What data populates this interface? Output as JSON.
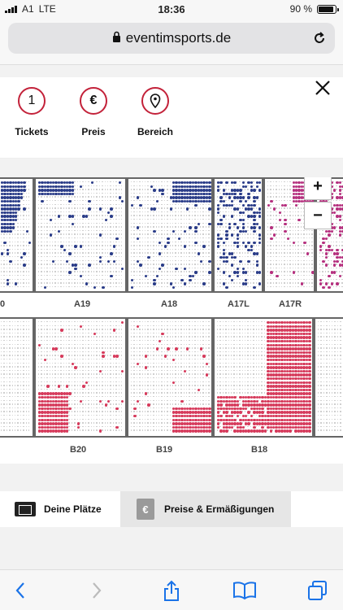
{
  "status_bar": {
    "carrier": "A1",
    "network": "LTE",
    "time": "18:36",
    "battery": "90 %",
    "battery_level": 0.9
  },
  "browser": {
    "url": "eventimsports.de"
  },
  "filters": [
    {
      "icon_text": "1",
      "label": "Tickets"
    },
    {
      "icon_text": "€",
      "label": "Preis"
    },
    {
      "icon": "location-pin-icon",
      "label": "Bereich"
    }
  ],
  "map": {
    "zoom_in": "+",
    "zoom_out": "−",
    "upper_labels": [
      "0",
      "A19",
      "A18",
      "A17L",
      "A17R"
    ],
    "lower_labels": [
      "B20",
      "B19",
      "B18"
    ]
  },
  "tabs": {
    "seats": "Deine Plätze",
    "prices": "Preise & Ermäßigungen"
  },
  "colors": {
    "accent": "#c3223a",
    "blue_seat": "#2a3c88",
    "red_seat": "#d63a5b",
    "magenta_seat": "#b5307e"
  }
}
